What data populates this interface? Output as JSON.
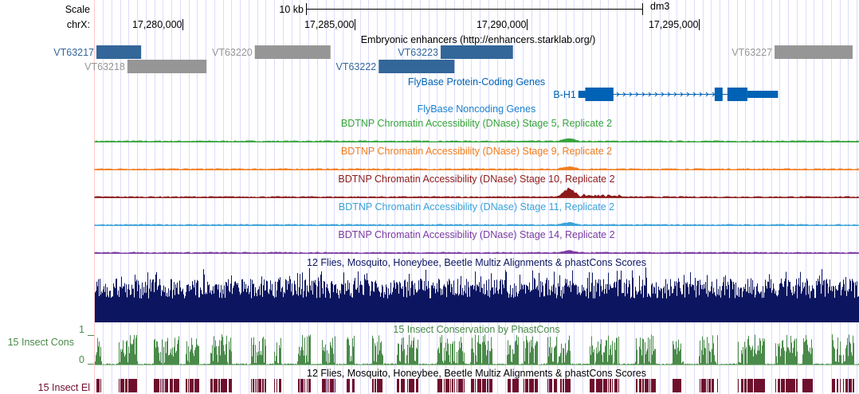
{
  "header": {
    "scale_label": "Scale",
    "scale_bar_label": "10 kb",
    "assembly": "dm3",
    "chrom_label": "chrX:",
    "ticks": [
      {
        "pos": 17280000,
        "label": "17,280,000"
      },
      {
        "pos": 17285000,
        "label": "17,285,000"
      },
      {
        "pos": 17290000,
        "label": "17,290,000"
      },
      {
        "pos": 17295000,
        "label": "17,295,000"
      }
    ]
  },
  "colors": {
    "enhancer_active": "#336699",
    "enhancer_inactive": "#969696",
    "gene": "#0062b4",
    "stage5": "#35a33a",
    "stage9": "#f07c1e",
    "stage10": "#8c1a1a",
    "stage11": "#3aa2d8",
    "stage14": "#7a3aa0",
    "multiz": "#0c1660",
    "cons": "#4a8a4a",
    "elements": "#6e0f2e",
    "grid": "#dcdcff",
    "left_border": "#ffc8c8"
  },
  "tracks": {
    "enhancers": {
      "title": "Embryonic enhancers (http://enhancers.starklab.org/)",
      "items": [
        {
          "name": "VT63217",
          "start": 17277500,
          "end": 17278800,
          "row": 1,
          "active": true
        },
        {
          "name": "VT63218",
          "start": 17278400,
          "end": 17280700,
          "row": 2,
          "active": false
        },
        {
          "name": "VT63220",
          "start": 17282100,
          "end": 17284300,
          "row": 1,
          "active": false
        },
        {
          "name": "VT63223",
          "start": 17287500,
          "end": 17289600,
          "row": 1,
          "active": true
        },
        {
          "name": "VT63222",
          "start": 17285700,
          "end": 17287900,
          "row": 2,
          "active": true
        },
        {
          "name": "VT63227",
          "start": 17297200,
          "end": 17299500,
          "row": 1,
          "active": false
        }
      ]
    },
    "protein_coding": {
      "title": "FlyBase Protein-Coding Genes",
      "gene": {
        "name": "B-H1",
        "start": 17291500,
        "end": 17297300,
        "exons": [
          {
            "start": 17291500,
            "end": 17291700,
            "thick": false
          },
          {
            "start": 17291700,
            "end": 17292520,
            "thick": true
          },
          {
            "start": 17295460,
            "end": 17295690,
            "thick": true
          },
          {
            "start": 17295830,
            "end": 17296410,
            "thick": true
          },
          {
            "start": 17296410,
            "end": 17297300,
            "thick": false
          }
        ]
      }
    },
    "noncoding": {
      "title": "FlyBase Noncoding Genes"
    },
    "dnase": [
      {
        "title": "BDTNP Chromatin Accessibility (DNase) Stage 5, Replicate 2",
        "color_key": "stage5",
        "peak": 0.3
      },
      {
        "title": "BDTNP Chromatin Accessibility (DNase) Stage 9, Replicate 2",
        "color_key": "stage9",
        "peak": 0.3
      },
      {
        "title": "BDTNP Chromatin Accessibility (DNase) Stage 10, Replicate 2",
        "color_key": "stage10",
        "peak": 1.0
      },
      {
        "title": "BDTNP Chromatin Accessibility (DNase) Stage 11, Replicate 2",
        "color_key": "stage11",
        "peak": 0.3
      },
      {
        "title": "BDTNP Chromatin Accessibility (DNase) Stage 14, Replicate 2",
        "color_key": "stage14",
        "peak": 0.2
      }
    ],
    "multiz": {
      "title": "12 Flies, Mosquito, Honeybee, Beetle Multiz Alignments & phastCons Scores"
    },
    "cons": {
      "title": "15 Insect Conservation by PhastCons",
      "side_label": "15 Insect Cons",
      "axis_max": "1",
      "axis_min": "0"
    },
    "elements": {
      "title": "12 Flies, Mosquito, Honeybee, Beetle Multiz Alignments & phastCons Scores",
      "side_label": "15 Insect El"
    }
  }
}
